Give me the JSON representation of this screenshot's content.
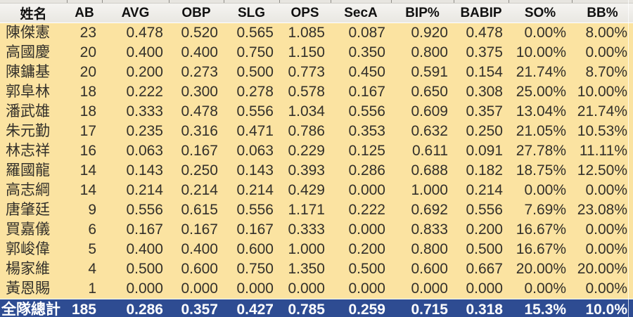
{
  "table": {
    "columns": [
      "姓名",
      "AB",
      "AVG",
      "OBP",
      "SLG",
      "OPS",
      "SecA",
      "BIP%",
      "BABIP",
      "SO%",
      "BB%"
    ],
    "rows": [
      [
        "陳傑憲",
        "23",
        "0.478",
        "0.520",
        "0.565",
        "1.085",
        "0.087",
        "0.920",
        "0.478",
        "0.00%",
        "8.00%"
      ],
      [
        "高國慶",
        "20",
        "0.400",
        "0.400",
        "0.750",
        "1.150",
        "0.350",
        "0.800",
        "0.375",
        "10.00%",
        "0.00%"
      ],
      [
        "陳鏞基",
        "20",
        "0.200",
        "0.273",
        "0.500",
        "0.773",
        "0.450",
        "0.591",
        "0.154",
        "21.74%",
        "8.70%"
      ],
      [
        "郭阜林",
        "18",
        "0.222",
        "0.300",
        "0.278",
        "0.578",
        "0.167",
        "0.650",
        "0.308",
        "25.00%",
        "10.00%"
      ],
      [
        "潘武雄",
        "18",
        "0.333",
        "0.478",
        "0.556",
        "1.034",
        "0.556",
        "0.609",
        "0.357",
        "13.04%",
        "21.74%"
      ],
      [
        "朱元勤",
        "17",
        "0.235",
        "0.316",
        "0.471",
        "0.786",
        "0.353",
        "0.632",
        "0.250",
        "21.05%",
        "10.53%"
      ],
      [
        "林志祥",
        "16",
        "0.063",
        "0.167",
        "0.063",
        "0.229",
        "0.125",
        "0.611",
        "0.091",
        "27.78%",
        "11.11%"
      ],
      [
        "羅國龍",
        "14",
        "0.143",
        "0.250",
        "0.143",
        "0.393",
        "0.286",
        "0.688",
        "0.182",
        "18.75%",
        "12.50%"
      ],
      [
        "高志綱",
        "14",
        "0.214",
        "0.214",
        "0.214",
        "0.429",
        "0.000",
        "1.000",
        "0.214",
        "0.00%",
        "0.00%"
      ],
      [
        "唐肇廷",
        "9",
        "0.556",
        "0.615",
        "0.556",
        "1.171",
        "0.222",
        "0.692",
        "0.556",
        "7.69%",
        "23.08%"
      ],
      [
        "買嘉儀",
        "6",
        "0.167",
        "0.167",
        "0.167",
        "0.333",
        "0.000",
        "0.833",
        "0.200",
        "16.67%",
        "0.00%"
      ],
      [
        "郭峻偉",
        "5",
        "0.400",
        "0.400",
        "0.600",
        "1.000",
        "0.200",
        "0.800",
        "0.500",
        "16.67%",
        "0.00%"
      ],
      [
        "楊家維",
        "4",
        "0.500",
        "0.600",
        "0.750",
        "1.350",
        "0.500",
        "0.600",
        "0.667",
        "20.00%",
        "20.00%"
      ],
      [
        "黃恩賜",
        "1",
        "0.000",
        "0.000",
        "0.000",
        "0.000",
        "0.000",
        "0.000",
        "0.000",
        "0.00%",
        "0.00%"
      ]
    ],
    "total_row": [
      "全隊總計",
      "185",
      "0.286",
      "0.357",
      "0.427",
      "0.785",
      "0.259",
      "0.715",
      "0.318",
      "15.3%",
      "10.0%"
    ],
    "colors": {
      "data_row_bg": "#fbe3a1",
      "header_bg": "#f0efeb",
      "total_row_bg": "#2e4c92",
      "total_row_text": "#ffffff"
    }
  }
}
